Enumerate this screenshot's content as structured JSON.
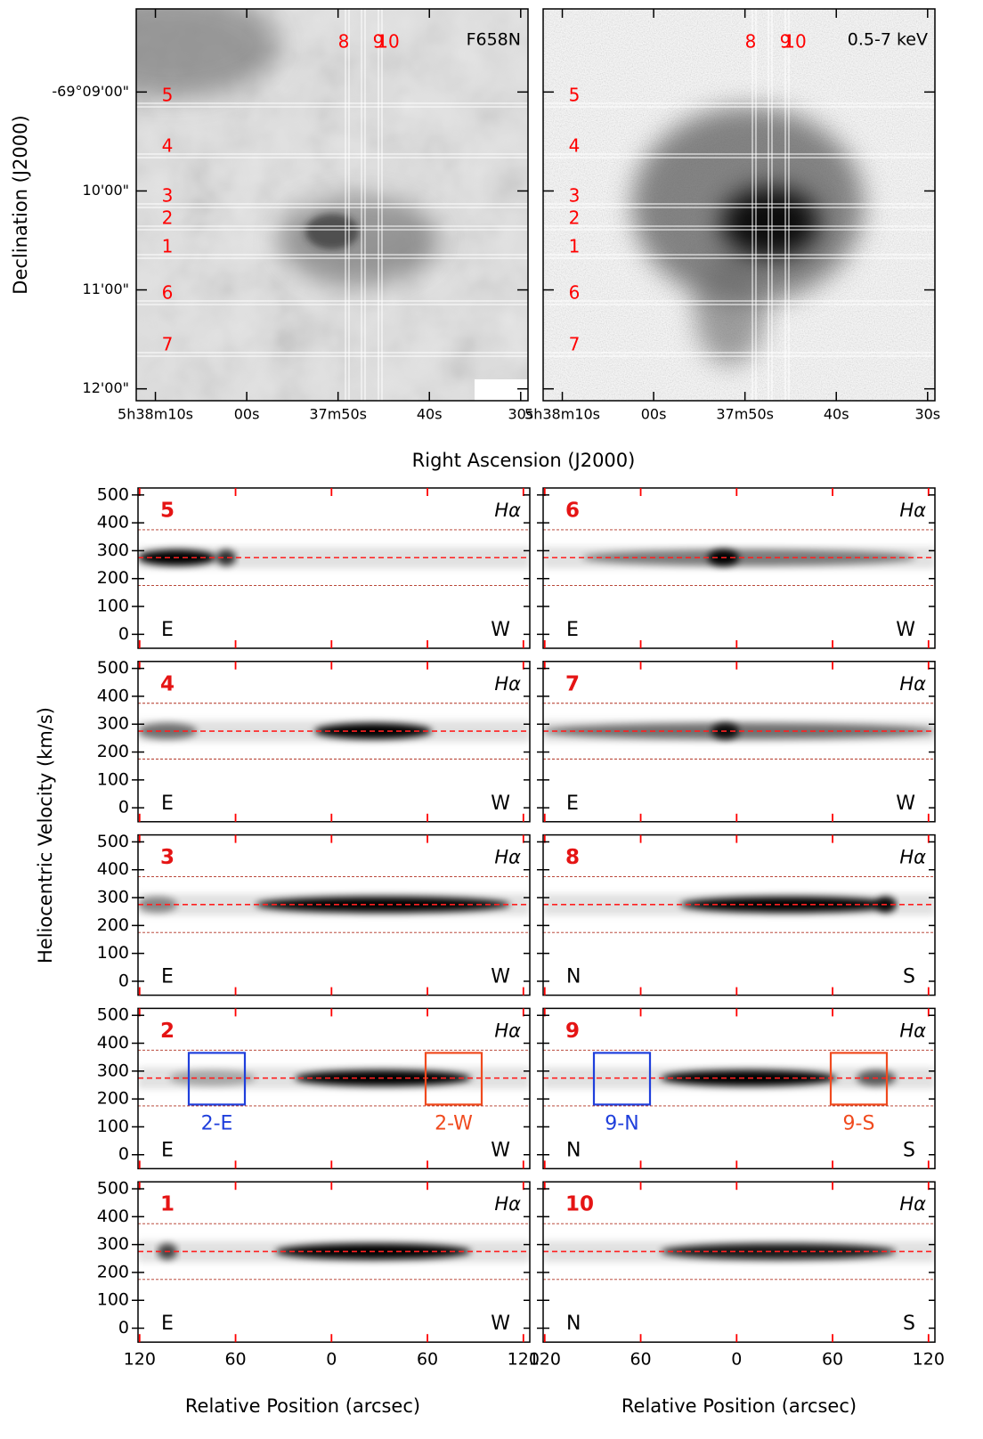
{
  "chart_data": [
    {
      "type": "image",
      "label": "F658N",
      "style": "optical",
      "slit_labels": [
        "5",
        "4",
        "3",
        "2",
        "1",
        "6",
        "7",
        "8",
        "9",
        "10"
      ]
    },
    {
      "type": "image",
      "label": "0.5-7 keV",
      "style": "xray",
      "slit_labels": [
        "5",
        "4",
        "3",
        "2",
        "1",
        "6",
        "7",
        "8",
        "9",
        "10"
      ]
    },
    {
      "type": "spectrum",
      "label": "5",
      "line": "Hα",
      "left": "E",
      "right": "W"
    },
    {
      "type": "spectrum",
      "label": "6",
      "line": "Hα",
      "left": "E",
      "right": "W"
    },
    {
      "type": "spectrum",
      "label": "4",
      "line": "Hα",
      "left": "E",
      "right": "W"
    },
    {
      "type": "spectrum",
      "label": "7",
      "line": "Hα",
      "left": "E",
      "right": "W"
    },
    {
      "type": "spectrum",
      "label": "3",
      "line": "Hα",
      "left": "E",
      "right": "W"
    },
    {
      "type": "spectrum",
      "label": "8",
      "line": "Hα",
      "left": "N",
      "right": "S"
    },
    {
      "type": "spectrum",
      "label": "2",
      "line": "Hα",
      "left": "E",
      "right": "W",
      "boxes": [
        {
          "label": "2-E",
          "color": "#1f3fdc"
        },
        {
          "label": "2-W",
          "color": "#f04a1e"
        }
      ]
    },
    {
      "type": "spectrum",
      "label": "9",
      "line": "Hα",
      "left": "N",
      "right": "S",
      "boxes": [
        {
          "label": "9-N",
          "color": "#1f3fdc"
        },
        {
          "label": "9-S",
          "color": "#f04a1e"
        }
      ]
    },
    {
      "type": "spectrum",
      "label": "1",
      "line": "Hα",
      "left": "E",
      "right": "W"
    },
    {
      "type": "spectrum",
      "label": "10",
      "line": "Hα",
      "left": "N",
      "right": "S"
    }
  ],
  "image_axes": {
    "xlabel": "Right Ascension (J2000)",
    "ylabel": "Declination (J2000)",
    "xlim": [
      72.1,
      29.2
    ],
    "xticks": [
      {
        "value": 70,
        "label": "5h38m10s"
      },
      {
        "value": 60,
        "label": "00s"
      },
      {
        "value": 50,
        "label": "37m50s"
      },
      {
        "value": 40,
        "label": "40s"
      },
      {
        "value": 30,
        "label": "30s"
      }
    ],
    "ylim": [
      8.16,
      12.12
    ],
    "yticks": [
      {
        "value": 9,
        "label": "-69°09'00\""
      },
      {
        "value": 10,
        "label": "10'00\""
      },
      {
        "value": 11,
        "label": "11'00\""
      },
      {
        "value": 12,
        "label": "12'00\""
      }
    ]
  },
  "spectrum_axes": {
    "xlabel": "Relative Position (arcsec)",
    "ylabel": "Heliocentric Velocity (km/s)",
    "xlim": [
      121,
      -124
    ],
    "xticks": [
      120,
      60,
      0,
      {
        "value": -60,
        "label": "60"
      },
      {
        "value": -120,
        "label": "120"
      }
    ],
    "ylim": [
      -50,
      525
    ],
    "yticks": [
      0,
      100,
      200,
      300,
      400,
      500
    ],
    "ref_lines": [
      175,
      275,
      375
    ]
  }
}
